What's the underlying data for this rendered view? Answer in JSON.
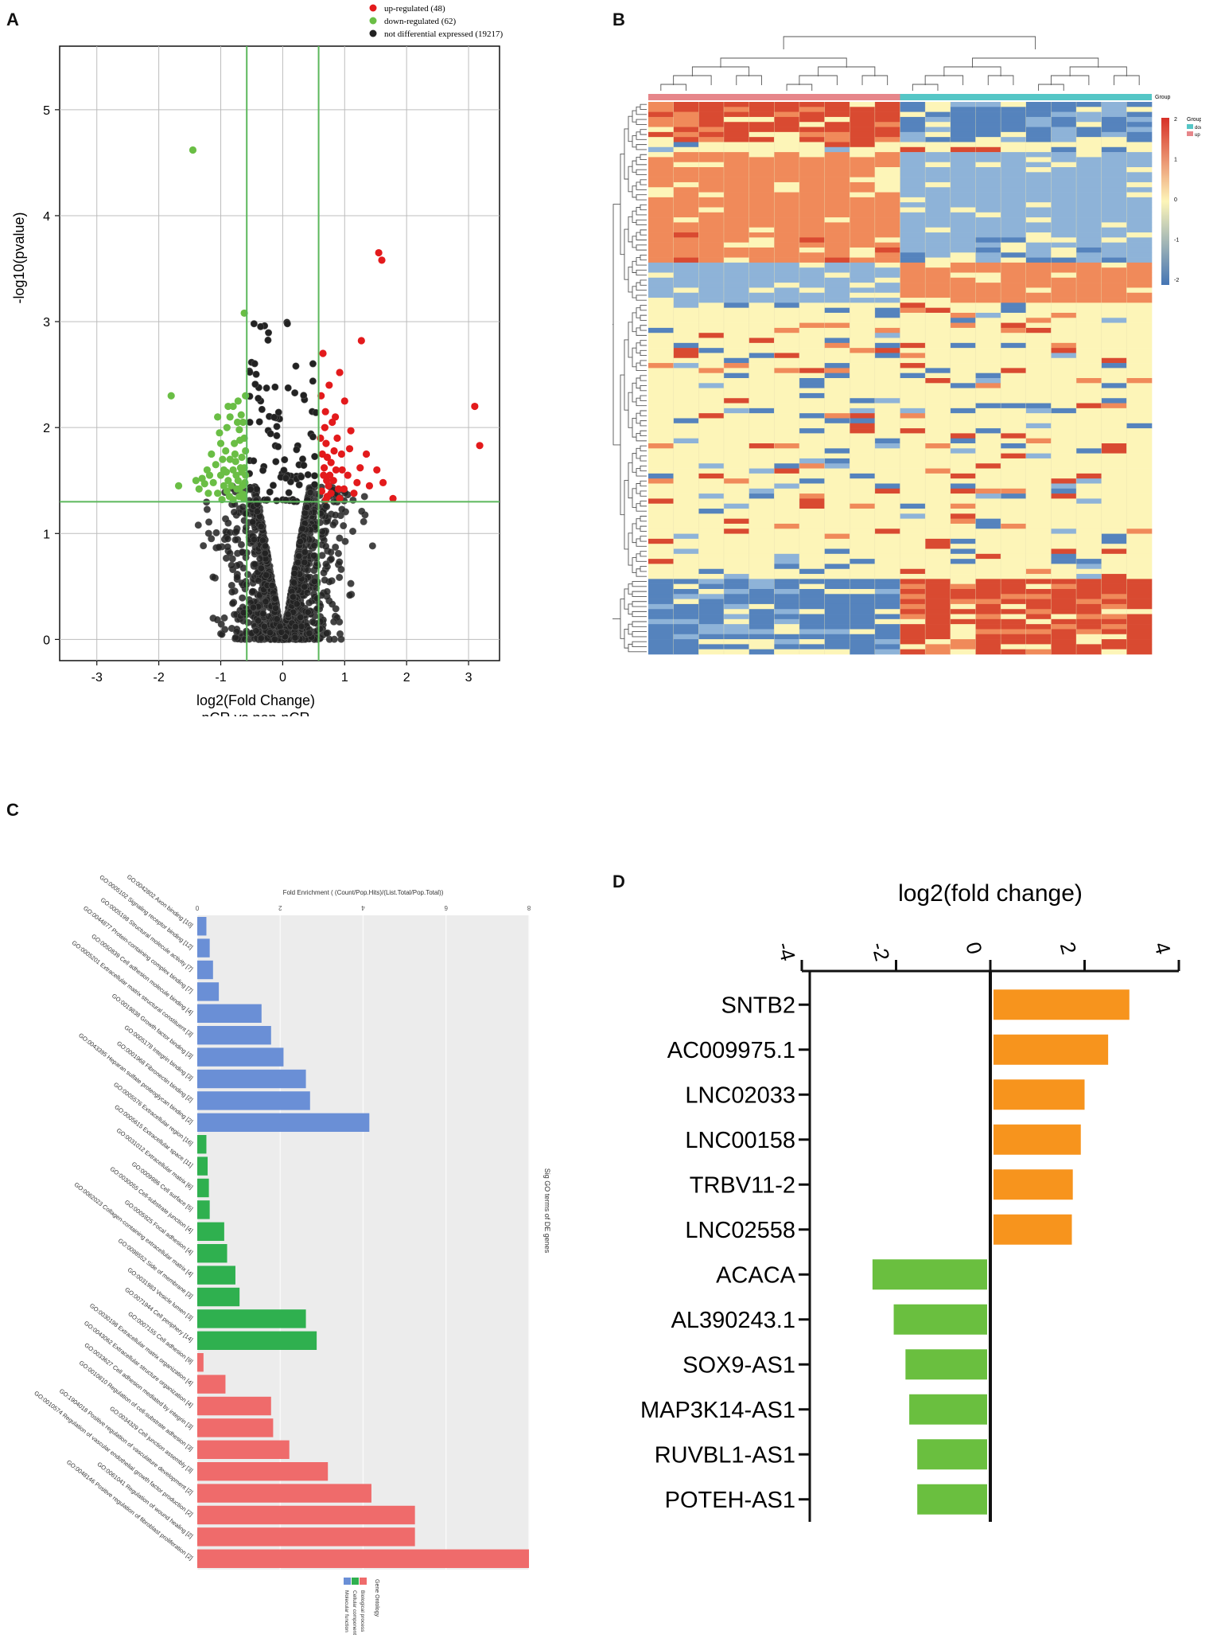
{
  "panels": {
    "a": "A",
    "b": "B",
    "c": "C",
    "d": "D"
  },
  "colors": {
    "up": "#e31a1c",
    "down": "#6abe45",
    "ns": "#222222",
    "grid": "#bdbdbd",
    "threshold": "#5cb85c",
    "heat_high": "#d73027",
    "heat_mid": "#fdf5b8",
    "heat_low": "#4575b4",
    "group_up": "#e6868a",
    "group_down": "#55c6c6",
    "go_mf": "#6a8fd6",
    "go_cc": "#2fb04f",
    "go_bp": "#ef6b6b",
    "d_pos": "#f7941d",
    "d_neg": "#6abf3f"
  },
  "chart_data": [
    {
      "id": "A",
      "type": "scatter",
      "title": "",
      "xlabel": "log2(Fold Change)",
      "xlabel2": "pCR vs non-pCR",
      "ylabel": "-log10(pvalue)",
      "xlim": [
        -3.6,
        3.5
      ],
      "ylim": [
        -0.2,
        5.6
      ],
      "xticks": [
        -3,
        -2,
        -1,
        0,
        1,
        2,
        3
      ],
      "yticks": [
        0,
        1,
        2,
        3,
        4,
        5
      ],
      "thresholds": {
        "x": [
          -0.58,
          0.58
        ],
        "y": 1.3
      },
      "legend": [
        {
          "label": "up-regulated (48)",
          "color": "#e31a1c"
        },
        {
          "label": "down-regulated (62)",
          "color": "#6abe45"
        },
        {
          "label": "not differential expressed (19217)",
          "color": "#222222"
        }
      ],
      "up_points": [
        [
          1.55,
          3.65
        ],
        [
          1.6,
          3.58
        ],
        [
          1.27,
          2.82
        ],
        [
          3.1,
          2.2
        ],
        [
          3.18,
          1.83
        ],
        [
          0.92,
          2.52
        ],
        [
          1.0,
          2.25
        ],
        [
          0.85,
          2.1
        ],
        [
          0.75,
          2.4
        ],
        [
          1.1,
          1.97
        ],
        [
          1.35,
          1.75
        ],
        [
          1.52,
          1.6
        ],
        [
          1.62,
          1.48
        ],
        [
          1.78,
          1.33
        ],
        [
          0.7,
          1.85
        ],
        [
          0.78,
          1.67
        ],
        [
          0.82,
          1.5
        ],
        [
          0.9,
          1.42
        ],
        [
          0.72,
          1.35
        ],
        [
          0.66,
          1.55
        ],
        [
          0.95,
          1.75
        ],
        [
          1.05,
          1.55
        ],
        [
          1.15,
          1.38
        ],
        [
          0.68,
          2.0
        ],
        [
          0.8,
          2.05
        ],
        [
          0.74,
          1.45
        ],
        [
          0.88,
          1.9
        ],
        [
          1.25,
          1.62
        ],
        [
          0.63,
          1.4
        ],
        [
          0.7,
          1.32
        ],
        [
          0.78,
          1.38
        ],
        [
          0.64,
          1.75
        ],
        [
          0.92,
          1.33
        ],
        [
          0.99,
          1.42
        ],
        [
          1.2,
          1.48
        ],
        [
          0.62,
          2.3
        ],
        [
          0.65,
          2.7
        ],
        [
          0.67,
          1.62
        ],
        [
          0.86,
          1.6
        ],
        [
          1.08,
          1.8
        ],
        [
          0.72,
          1.72
        ],
        [
          0.76,
          1.55
        ],
        [
          0.96,
          1.6
        ],
        [
          0.61,
          1.9
        ],
        [
          0.69,
          2.15
        ],
        [
          1.4,
          1.45
        ],
        [
          0.83,
          1.78
        ],
        [
          0.71,
          1.5
        ]
      ],
      "down_points": [
        [
          -1.45,
          4.62
        ],
        [
          -0.62,
          3.08
        ],
        [
          -1.8,
          2.3
        ],
        [
          -1.68,
          1.45
        ],
        [
          -1.05,
          2.1
        ],
        [
          -0.9,
          2.0
        ],
        [
          -0.8,
          2.2
        ],
        [
          -0.72,
          2.25
        ],
        [
          -1.0,
          1.85
        ],
        [
          -1.15,
          1.75
        ],
        [
          -1.22,
          1.6
        ],
        [
          -1.3,
          1.52
        ],
        [
          -0.95,
          1.6
        ],
        [
          -0.85,
          1.7
        ],
        [
          -0.75,
          1.55
        ],
        [
          -0.68,
          1.62
        ],
        [
          -0.65,
          1.45
        ],
        [
          -0.9,
          1.4
        ],
        [
          -1.05,
          1.38
        ],
        [
          -0.7,
          1.35
        ],
        [
          -0.78,
          1.85
        ],
        [
          -0.62,
          1.9
        ],
        [
          -0.64,
          2.05
        ],
        [
          -0.88,
          1.5
        ],
        [
          -1.12,
          1.48
        ],
        [
          -0.98,
          1.32
        ],
        [
          -0.8,
          1.32
        ],
        [
          -0.66,
          1.72
        ],
        [
          -0.74,
          1.42
        ],
        [
          -1.2,
          1.38
        ],
        [
          -0.6,
          1.55
        ],
        [
          -0.85,
          2.1
        ],
        [
          -1.0,
          1.55
        ],
        [
          -0.92,
          1.78
        ],
        [
          -0.7,
          1.98
        ],
        [
          -1.35,
          1.42
        ],
        [
          -0.63,
          1.33
        ],
        [
          -0.76,
          1.68
        ],
        [
          -0.86,
          1.35
        ],
        [
          -1.08,
          1.65
        ],
        [
          -0.67,
          2.12
        ],
        [
          -0.6,
          1.78
        ],
        [
          -0.72,
          1.5
        ],
        [
          -0.95,
          1.45
        ],
        [
          -1.18,
          1.55
        ],
        [
          -0.8,
          1.6
        ],
        [
          -0.62,
          1.62
        ],
        [
          -0.7,
          1.42
        ],
        [
          -1.02,
          1.95
        ],
        [
          -0.88,
          2.2
        ],
        [
          -0.6,
          2.3
        ],
        [
          -0.69,
          1.88
        ],
        [
          -0.77,
          1.75
        ],
        [
          -0.83,
          1.45
        ],
        [
          -0.91,
          1.58
        ],
        [
          -0.64,
          1.37
        ],
        [
          -1.26,
          1.47
        ],
        [
          -0.73,
          2.05
        ],
        [
          -0.97,
          1.7
        ],
        [
          -0.61,
          1.48
        ],
        [
          -0.66,
          1.58
        ],
        [
          -1.4,
          1.5
        ]
      ]
    },
    {
      "id": "B",
      "type": "heatmap",
      "legend_title": "Group",
      "legend_groups": [
        "down",
        "up"
      ],
      "scale_ticks": [
        "2",
        "1",
        "0",
        "-1",
        "-2"
      ],
      "n_up_samples": 10,
      "n_down_samples": 10
    },
    {
      "id": "C",
      "type": "bar",
      "title": "Fold Enrichment ( (Count/Pop.Hits)/(List.Total/Pop.Total))",
      "ylabel": "Sig GO terms of DE genes",
      "legend_title": "Gene Ontology",
      "legend": [
        {
          "label": "Biological process",
          "color": "#ef6b6b"
        },
        {
          "label": "Cellular component",
          "color": "#2fb04f"
        },
        {
          "label": "Molecular function",
          "color": "#6a8fd6"
        }
      ],
      "xlim": [
        0,
        8
      ],
      "xticks": [
        "0",
        "2",
        "4",
        "6",
        "8"
      ],
      "bars": [
        {
          "label": "GO:0042802 Axon binding [10]",
          "value": 0.22,
          "group": "mf"
        },
        {
          "label": "GO:0005102 Signaling receptor binding [12]",
          "value": 0.3,
          "group": "mf"
        },
        {
          "label": "GO:0005198 Structural molecule activity [7]",
          "value": 0.38,
          "group": "mf"
        },
        {
          "label": "GO:0044877 Protein-containing complex binding [7]",
          "value": 0.52,
          "group": "mf"
        },
        {
          "label": "GO:0050839 Cell adhesion molecule binding [4]",
          "value": 1.55,
          "group": "mf"
        },
        {
          "label": "GO:0005201 Extracellular matrix structural constituent [3]",
          "value": 1.78,
          "group": "mf"
        },
        {
          "label": "GO:0019838 Growth factor binding [3]",
          "value": 2.08,
          "group": "mf"
        },
        {
          "label": "GO:0005178 Integrin binding [3]",
          "value": 2.62,
          "group": "mf"
        },
        {
          "label": "GO:0001968 Fibronectin binding [2]",
          "value": 2.72,
          "group": "mf"
        },
        {
          "label": "GO:0043395 Heparan sulfate proteoglycan binding [2]",
          "value": 4.15,
          "group": "mf"
        },
        {
          "label": "GO:0005576 Extracellular region [16]",
          "value": 0.22,
          "group": "cc"
        },
        {
          "label": "GO:0005615 Extracellular space [11]",
          "value": 0.25,
          "group": "cc"
        },
        {
          "label": "GO:0031012 Extracellular matrix [6]",
          "value": 0.28,
          "group": "cc"
        },
        {
          "label": "GO:0009986 Cell surface [5]",
          "value": 0.3,
          "group": "cc"
        },
        {
          "label": "GO:0030055 Cell-substrate junction [4]",
          "value": 0.65,
          "group": "cc"
        },
        {
          "label": "GO:0005925 Focal adhesion [4]",
          "value": 0.72,
          "group": "cc"
        },
        {
          "label": "GO:0062023 Collagen-containing extracellular matrix [4]",
          "value": 0.92,
          "group": "cc"
        },
        {
          "label": "GO:0098552 Side of membrane [3]",
          "value": 1.02,
          "group": "cc"
        },
        {
          "label": "GO:0031983 Vesicle lumen [3]",
          "value": 2.62,
          "group": "cc"
        },
        {
          "label": "GO:0071944 Cell periphery [14]",
          "value": 2.88,
          "group": "cc"
        },
        {
          "label": "GO:0007155 Cell adhesion [9]",
          "value": 0.15,
          "group": "bp"
        },
        {
          "label": "GO:0030198 Extracellular matrix organization [4]",
          "value": 0.68,
          "group": "bp"
        },
        {
          "label": "GO:0043062 Extracellular structure organization [4]",
          "value": 1.78,
          "group": "bp"
        },
        {
          "label": "GO:0033627 Cell adhesion mediated by integrin [3]",
          "value": 1.83,
          "group": "bp"
        },
        {
          "label": "GO:0010810 Regulation of cell-substrate adhesion [3]",
          "value": 2.22,
          "group": "bp"
        },
        {
          "label": "GO:0034329 Cell junction assembly [3]",
          "value": 3.15,
          "group": "bp"
        },
        {
          "label": "GO:1904018 Positive regulation of vasculature development [2]",
          "value": 4.2,
          "group": "bp"
        },
        {
          "label": "GO:0010574 Regulation of vascular endothelial growth factor production [2]",
          "value": 5.25,
          "group": "bp"
        },
        {
          "label": "GO:0061041 Regulation of wound healing [2]",
          "value": 5.25,
          "group": "bp"
        },
        {
          "label": "GO:0048146 Positive regulation of fibroblast proliferation [2]",
          "value": 8.0,
          "group": "bp"
        }
      ]
    },
    {
      "id": "D",
      "type": "bar",
      "title": "log2(fold change)",
      "xlim": [
        -4,
        4
      ],
      "xticks": [
        "-4",
        "-2",
        "0",
        "2",
        "4"
      ],
      "categories": [
        "SNTB2",
        "AC009975.1",
        "LNC02033",
        "LNC00158",
        "TRBV11-2",
        "LNC02558",
        "ACACA",
        "AL390243.1",
        "SOX9-AS1",
        "MAP3K14-AS1",
        "RUVBL1-AS1",
        "POTEH-AS1"
      ],
      "values": [
        2.95,
        2.5,
        2.0,
        1.92,
        1.75,
        1.73,
        -2.5,
        -2.05,
        -1.8,
        -1.72,
        -1.55,
        -1.55
      ]
    }
  ]
}
